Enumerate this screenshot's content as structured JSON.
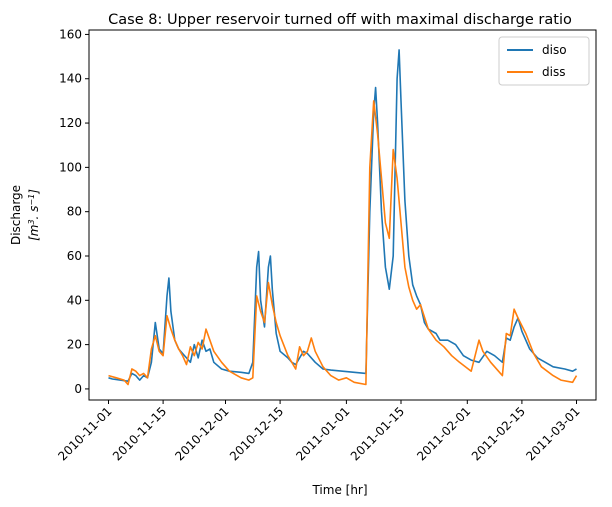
{
  "chart_data": {
    "type": "line",
    "title": "Case 8: Upper reservoir turned off with maximal discharge ratio",
    "xlabel": "Time [hr]",
    "ylabel_line1": "Discharge",
    "ylabel_line2_parts": [
      "[m",
      "3",
      ". s",
      "−1",
      "]"
    ],
    "x_ticks": [
      "2010-11-01",
      "2010-11-15",
      "2010-12-01",
      "2010-12-15",
      "2011-01-01",
      "2011-01-15",
      "2011-02-01",
      "2011-02-15",
      "2011-03-01"
    ],
    "y_ticks": [
      0,
      20,
      40,
      60,
      80,
      100,
      120,
      140,
      160
    ],
    "xlim": [
      "2010-10-27",
      "2011-03-06"
    ],
    "ylim": [
      -5,
      162
    ],
    "legend_position": "top-right",
    "grid": false,
    "series": [
      {
        "name": "diso",
        "color": "#1f77b4",
        "points": [
          [
            "2010-11-01",
            5
          ],
          [
            "2010-11-02",
            4.5
          ],
          [
            "2010-11-04",
            4
          ],
          [
            "2010-11-06",
            3.5
          ],
          [
            "2010-11-07",
            7
          ],
          [
            "2010-11-08",
            6
          ],
          [
            "2010-11-09",
            4
          ],
          [
            "2010-11-10",
            6
          ],
          [
            "2010-11-11",
            5
          ],
          [
            "2010-11-12",
            12
          ],
          [
            "2010-11-13",
            30
          ],
          [
            "2010-11-14",
            18
          ],
          [
            "2010-11-15",
            16
          ],
          [
            "2010-11-16",
            42
          ],
          [
            "2010-11-16T12",
            50
          ],
          [
            "2010-11-17",
            35
          ],
          [
            "2010-11-18",
            22
          ],
          [
            "2010-11-19",
            18
          ],
          [
            "2010-11-20",
            16
          ],
          [
            "2010-11-21",
            14
          ],
          [
            "2010-11-22",
            12
          ],
          [
            "2010-11-23",
            20
          ],
          [
            "2010-11-24",
            14
          ],
          [
            "2010-11-25",
            22
          ],
          [
            "2010-11-26",
            17
          ],
          [
            "2010-11-27",
            18
          ],
          [
            "2010-11-28",
            12
          ],
          [
            "2010-11-30",
            9
          ],
          [
            "2010-12-02",
            8
          ],
          [
            "2010-12-05",
            7.5
          ],
          [
            "2010-12-07",
            7
          ],
          [
            "2010-12-08",
            12
          ],
          [
            "2010-12-09",
            55
          ],
          [
            "2010-12-09T12",
            62
          ],
          [
            "2010-12-10",
            40
          ],
          [
            "2010-12-11",
            28
          ],
          [
            "2010-12-12",
            55
          ],
          [
            "2010-12-12T12",
            60
          ],
          [
            "2010-12-13",
            45
          ],
          [
            "2010-12-14",
            25
          ],
          [
            "2010-12-15",
            17
          ],
          [
            "2010-12-17",
            14
          ],
          [
            "2010-12-18",
            12
          ],
          [
            "2010-12-19",
            11
          ],
          [
            "2010-12-20",
            14
          ],
          [
            "2010-12-21",
            17
          ],
          [
            "2010-12-22",
            16
          ],
          [
            "2010-12-24",
            12
          ],
          [
            "2010-12-26",
            9
          ],
          [
            "2010-12-28",
            8.5
          ],
          [
            "2010-12-31",
            8
          ],
          [
            "2011-01-03",
            7.5
          ],
          [
            "2011-01-06",
            7
          ],
          [
            "2011-01-07",
            80
          ],
          [
            "2011-01-08",
            125
          ],
          [
            "2011-01-08T12",
            136
          ],
          [
            "2011-01-09",
            120
          ],
          [
            "2011-01-10",
            80
          ],
          [
            "2011-01-11",
            55
          ],
          [
            "2011-01-12",
            45
          ],
          [
            "2011-01-13",
            60
          ],
          [
            "2011-01-14",
            140
          ],
          [
            "2011-01-14T12",
            153
          ],
          [
            "2011-01-15",
            130
          ],
          [
            "2011-01-16",
            85
          ],
          [
            "2011-01-17",
            60
          ],
          [
            "2011-01-18",
            47
          ],
          [
            "2011-01-19",
            42
          ],
          [
            "2011-01-20",
            38
          ],
          [
            "2011-01-21",
            30
          ],
          [
            "2011-01-22",
            27
          ],
          [
            "2011-01-24",
            25
          ],
          [
            "2011-01-25",
            22
          ],
          [
            "2011-01-27",
            22
          ],
          [
            "2011-01-29",
            20
          ],
          [
            "2011-01-31",
            15
          ],
          [
            "2011-02-02",
            13
          ],
          [
            "2011-02-04",
            12
          ],
          [
            "2011-02-06",
            17
          ],
          [
            "2011-02-08",
            15
          ],
          [
            "2011-02-10",
            12
          ],
          [
            "2011-02-11",
            23
          ],
          [
            "2011-02-12",
            22
          ],
          [
            "2011-02-13",
            28
          ],
          [
            "2011-02-14",
            32
          ],
          [
            "2011-02-15",
            26
          ],
          [
            "2011-02-17",
            18
          ],
          [
            "2011-02-19",
            14
          ],
          [
            "2011-02-21",
            12
          ],
          [
            "2011-02-23",
            10
          ],
          [
            "2011-02-26",
            9
          ],
          [
            "2011-02-28",
            8
          ],
          [
            "2011-03-01",
            9
          ]
        ]
      },
      {
        "name": "diss",
        "color": "#ff7f0e",
        "points": [
          [
            "2010-11-01",
            6
          ],
          [
            "2010-11-03",
            5
          ],
          [
            "2010-11-05",
            4
          ],
          [
            "2010-11-06",
            2
          ],
          [
            "2010-11-07",
            9
          ],
          [
            "2010-11-08",
            8
          ],
          [
            "2010-11-09",
            6
          ],
          [
            "2010-11-10",
            7
          ],
          [
            "2010-11-11",
            5
          ],
          [
            "2010-11-12",
            18
          ],
          [
            "2010-11-13",
            24
          ],
          [
            "2010-11-14",
            17
          ],
          [
            "2010-11-15",
            15
          ],
          [
            "2010-11-16",
            33
          ],
          [
            "2010-11-17",
            27
          ],
          [
            "2010-11-18",
            22
          ],
          [
            "2010-11-19",
            18
          ],
          [
            "2010-11-20",
            15
          ],
          [
            "2010-11-21",
            11
          ],
          [
            "2010-11-22",
            19
          ],
          [
            "2010-11-23",
            15
          ],
          [
            "2010-11-24",
            21
          ],
          [
            "2010-11-25",
            18
          ],
          [
            "2010-11-26",
            27
          ],
          [
            "2010-11-27",
            22
          ],
          [
            "2010-11-28",
            17
          ],
          [
            "2010-11-30",
            12
          ],
          [
            "2010-12-02",
            8
          ],
          [
            "2010-12-05",
            5
          ],
          [
            "2010-12-07",
            4
          ],
          [
            "2010-12-08",
            5
          ],
          [
            "2010-12-09",
            42
          ],
          [
            "2010-12-10",
            35
          ],
          [
            "2010-12-11",
            30
          ],
          [
            "2010-12-12",
            48
          ],
          [
            "2010-12-13",
            38
          ],
          [
            "2010-12-14",
            30
          ],
          [
            "2010-12-15",
            24
          ],
          [
            "2010-12-17",
            15
          ],
          [
            "2010-12-19",
            9
          ],
          [
            "2010-12-20",
            19
          ],
          [
            "2010-12-21",
            15
          ],
          [
            "2010-12-22",
            17
          ],
          [
            "2010-12-23",
            23
          ],
          [
            "2010-12-24",
            17
          ],
          [
            "2010-12-26",
            10
          ],
          [
            "2010-12-28",
            6
          ],
          [
            "2010-12-30",
            4
          ],
          [
            "2011-01-01",
            5
          ],
          [
            "2011-01-03",
            3
          ],
          [
            "2011-01-06",
            2
          ],
          [
            "2011-01-07",
            100
          ],
          [
            "2011-01-08",
            130
          ],
          [
            "2011-01-09",
            115
          ],
          [
            "2011-01-10",
            95
          ],
          [
            "2011-01-11",
            75
          ],
          [
            "2011-01-12",
            68
          ],
          [
            "2011-01-13",
            108
          ],
          [
            "2011-01-14",
            95
          ],
          [
            "2011-01-15",
            75
          ],
          [
            "2011-01-16",
            55
          ],
          [
            "2011-01-17",
            46
          ],
          [
            "2011-01-18",
            40
          ],
          [
            "2011-01-19",
            36
          ],
          [
            "2011-01-20",
            38
          ],
          [
            "2011-01-22",
            27
          ],
          [
            "2011-01-24",
            22
          ],
          [
            "2011-01-26",
            19
          ],
          [
            "2011-01-28",
            15
          ],
          [
            "2011-01-30",
            12
          ],
          [
            "2011-02-02",
            8
          ],
          [
            "2011-02-04",
            22
          ],
          [
            "2011-02-05",
            17
          ],
          [
            "2011-02-07",
            12
          ],
          [
            "2011-02-09",
            8
          ],
          [
            "2011-02-10",
            6
          ],
          [
            "2011-02-11",
            25
          ],
          [
            "2011-02-12",
            24
          ],
          [
            "2011-02-13",
            36
          ],
          [
            "2011-02-14",
            32
          ],
          [
            "2011-02-16",
            25
          ],
          [
            "2011-02-18",
            16
          ],
          [
            "2011-02-20",
            10
          ],
          [
            "2011-02-23",
            6
          ],
          [
            "2011-02-25",
            4
          ],
          [
            "2011-02-28",
            3
          ],
          [
            "2011-03-01",
            6
          ]
        ]
      }
    ]
  }
}
